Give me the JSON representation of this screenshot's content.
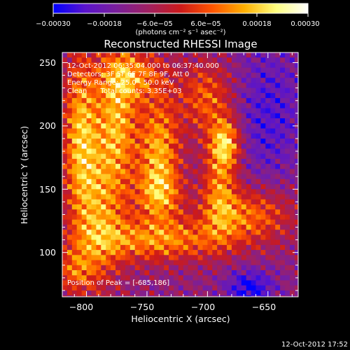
{
  "chart_data": {
    "type": "heatmap",
    "title": "Reconstructed RHESSI Image",
    "xlabel": "Heliocentric X (arcsec)",
    "ylabel": "Heliocentric Y (arcsec)",
    "xlim": [
      -820,
      -625
    ],
    "ylim": [
      65,
      258
    ],
    "xticks": [
      -800,
      -750,
      -700,
      -650
    ],
    "yticks": [
      100,
      150,
      200,
      250
    ],
    "xtick_labels": [
      "−800",
      "−750",
      "−700",
      "−650"
    ],
    "ytick_labels": [
      "100",
      "150",
      "200",
      "250"
    ],
    "colorbar": {
      "range": [
        -0.0003,
        0.0003
      ],
      "tick_labels": [
        "−0.00030",
        "−0.00018",
        "−6.0e−05",
        "6.0e−05",
        "0.00018",
        "0.00030"
      ],
      "units": "(photons cm⁻² s⁻¹ asec⁻²)",
      "stops": [
        "#0000ff",
        "#5a14cc",
        "#7a1f9a",
        "#a02060",
        "#cc1a1a",
        "#ff5500",
        "#ffb000",
        "#ffff80",
        "#ffffff"
      ]
    },
    "annotations": [
      "12-Oct-2012 06:35:04.000 to 06:37:40.000",
      "Detectors: 3F 5F 6F 7F 8F 9F, Att 0",
      "Energy Range: 25.0 - 50.0 keV",
      "Clean      Total counts: 3.35E+03"
    ],
    "peak_label": "Position of Peak = [-685,186]",
    "peak": [
      -685,
      186
    ]
  },
  "footer": {
    "timestamp": "12-Oct-2012 17:52"
  }
}
